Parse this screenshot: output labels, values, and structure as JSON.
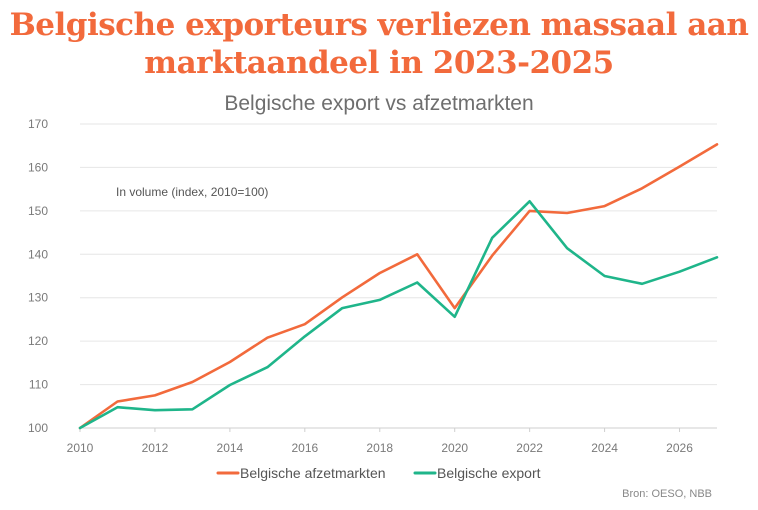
{
  "headline": {
    "line1": "Belgische exporteurs verliezen massaal aan",
    "line2": "marktaandeel in 2023-2025"
  },
  "chart_data": {
    "type": "line",
    "title": "Belgische export vs afzetmarkten",
    "annotation": "In volume (index, 2010=100)",
    "source": "Bron: OESO, NBB",
    "xlabel": "",
    "ylabel": "",
    "xlim": [
      2010,
      2027
    ],
    "ylim": [
      100,
      170
    ],
    "x_ticks": [
      2010,
      2012,
      2014,
      2016,
      2018,
      2020,
      2022,
      2024,
      2026
    ],
    "y_ticks": [
      100,
      110,
      120,
      130,
      140,
      150,
      160,
      170
    ],
    "grid": "horizontal",
    "legend_position": "bottom",
    "x": [
      2010,
      2011,
      2012,
      2013,
      2014,
      2015,
      2016,
      2017,
      2018,
      2019,
      2020,
      2021,
      2022,
      2023,
      2024,
      2025,
      2026,
      2027
    ],
    "series": [
      {
        "name": "Belgische afzetmarkten",
        "color": "#f26a3c",
        "values": [
          100,
          106.1,
          107.5,
          110.6,
          115.2,
          120.8,
          123.9,
          130.1,
          135.7,
          140.0,
          127.6,
          139.7,
          150.0,
          149.5,
          151.1,
          155.2,
          160.2,
          165.3
        ]
      },
      {
        "name": "Belgische export",
        "color": "#1fb58a",
        "values": [
          100,
          104.8,
          104.1,
          104.3,
          109.9,
          114.0,
          121.1,
          127.6,
          129.5,
          133.5,
          125.6,
          143.8,
          152.2,
          141.4,
          135.0,
          133.2,
          136.0,
          139.3
        ]
      }
    ]
  }
}
